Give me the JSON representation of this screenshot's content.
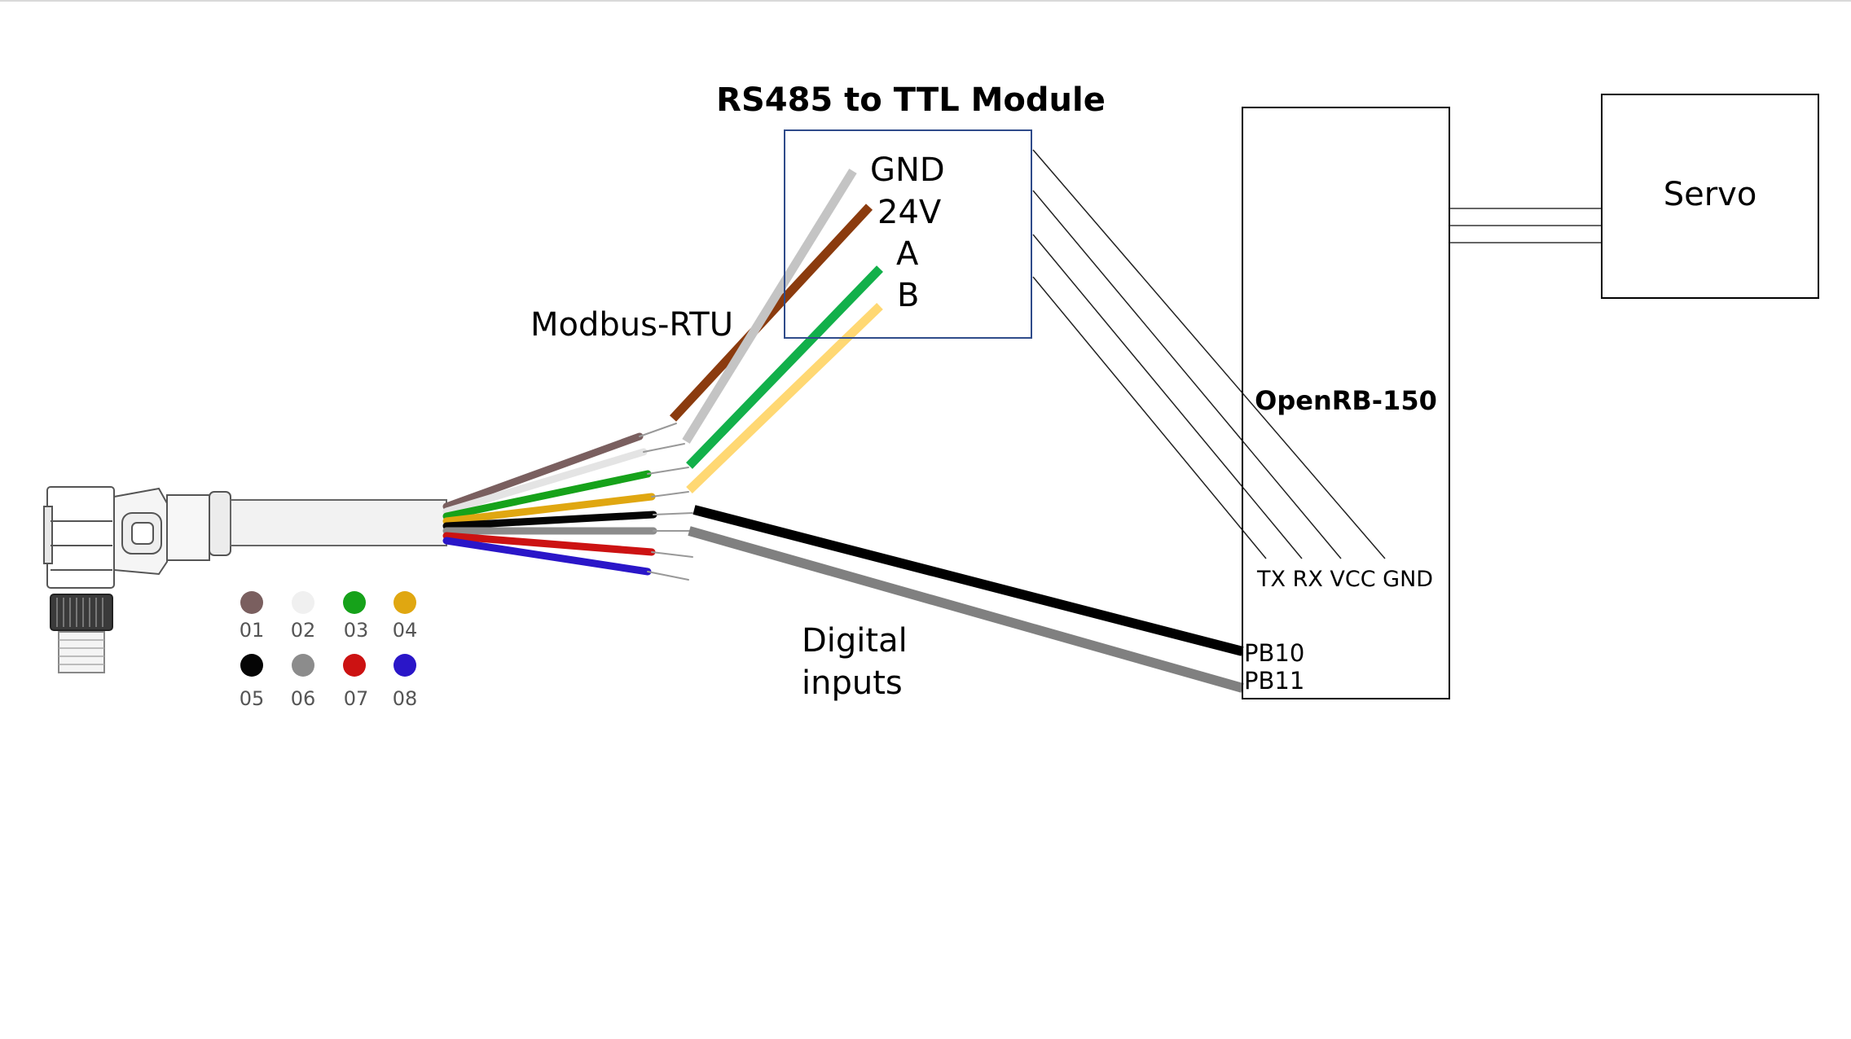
{
  "module": {
    "title": "RS485 to TTL Module",
    "pins": [
      "GND",
      "24V",
      "A",
      "B"
    ]
  },
  "board": {
    "title": "OpenRB-150",
    "uart_pins": "TX RX VCC GND",
    "digital_pins": [
      "PB10",
      "PB11"
    ]
  },
  "servo": {
    "label": "Servo"
  },
  "labels": {
    "modbus": "Modbus-RTU",
    "digital_line1": "Digital",
    "digital_line2": "inputs"
  },
  "wire_legend": [
    {
      "number": "01",
      "color": "#7a5f5f"
    },
    {
      "number": "02",
      "color": "#f0f0f0"
    },
    {
      "number": "03",
      "color": "#16a21a"
    },
    {
      "number": "04",
      "color": "#e0a711"
    },
    {
      "number": "05",
      "color": "#050505"
    },
    {
      "number": "06",
      "color": "#8c8c8c"
    },
    {
      "number": "07",
      "color": "#cc1212"
    },
    {
      "number": "08",
      "color": "#2a16c8"
    }
  ],
  "wire_colors": {
    "gnd": "#c4c4c4",
    "v24": "#8b3b0e",
    "a": "#12b04a",
    "b": "#ffd873",
    "pb10": "#000000",
    "pb11": "#808080"
  }
}
